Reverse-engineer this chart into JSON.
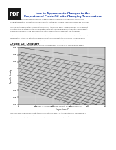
{
  "pdf_icon_text": "PDF",
  "title_line1": "ions to Approximate Changes to the",
  "title_line2": "Properties of Crude Oil with Changing Temperature",
  "section_header": "Crude Oil Density",
  "figure_caption_short": "Figure 1.1: Approximate change in specific gravity with temperature for crude oil on semi-logarithm graphs.",
  "figure_caption_full": "Figure 1.0: Crude Oil Specific Density vs Temperature (1)",
  "footer_line1": "Data graph was compared with density-temperature data from Table C-1, API Publication 421. Discrepancies in",
  "footer_line2": "this graph were reviewed against the original paper. Comparison shown in Figure 1(B) below",
  "footer_line3": "with label experiment are the original graph. This time shows good agreement.",
  "chart": {
    "xlim": [
      50,
      300
    ],
    "ylim": [
      0.6,
      1.0
    ],
    "xlabel": "Temperature, F",
    "ylabel": "Specific Gravity",
    "x_ticks": [
      50,
      100,
      150,
      200,
      250,
      300
    ],
    "y_ticks": [
      0.6,
      0.65,
      0.7,
      0.75,
      0.8,
      0.85,
      0.9,
      0.95,
      1.0
    ],
    "background_color": "#cccccc",
    "line_color": "#333333"
  },
  "page_background": "#ffffff",
  "pdf_icon_bg": "#1a1a1a",
  "pdf_icon_color": "#ffffff",
  "title_color": "#2244aa",
  "body_color": "#444444",
  "section_color": "#111111"
}
